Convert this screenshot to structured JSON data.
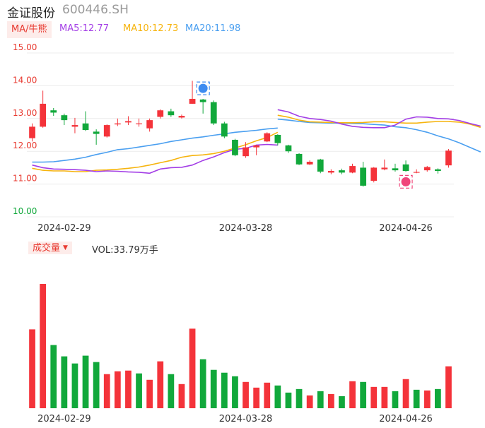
{
  "header": {
    "name": "金证股份",
    "code": "600446.SH"
  },
  "ma_legend": {
    "tag": "MA/牛熊",
    "ma5": "MA5:12.77",
    "ma10": "MA10:12.73",
    "ma20": "MA20:11.98"
  },
  "volume_legend": {
    "tag": "成交量",
    "value": "VOL:33.79万手"
  },
  "colors": {
    "up": "#f4333a",
    "down": "#11a83b",
    "ma5": "#a33ee6",
    "ma10": "#f6b40e",
    "ma20": "#4a9ff0",
    "price_axis": "#e8392f",
    "low_axis": "#11a83b",
    "grid": "#ececec",
    "signal_buy": "#3d8bf0",
    "signal_sell": "#f0457a"
  },
  "chart_data": [
    {
      "type": "candlestick",
      "ylim": [
        10.0,
        15.0
      ],
      "y_ticks": [
        "15.00",
        "14.00",
        "13.00",
        "12.00",
        "11.00",
        "10.00"
      ],
      "x_tick_labels": [
        "2024-02-29",
        "2024-03-28",
        "2024-04-26"
      ],
      "x_tick_indices": [
        3,
        20,
        35
      ],
      "candles": [
        {
          "o": 12.4,
          "c": 12.75,
          "h": 12.85,
          "l": 12.3
        },
        {
          "o": 12.75,
          "c": 13.45,
          "h": 13.85,
          "l": 12.72
        },
        {
          "o": 13.25,
          "c": 13.18,
          "h": 13.32,
          "l": 13.08
        },
        {
          "o": 13.1,
          "c": 12.95,
          "h": 13.15,
          "l": 12.8
        },
        {
          "o": 12.75,
          "c": 12.8,
          "h": 13.02,
          "l": 12.55
        },
        {
          "o": 12.85,
          "c": 12.65,
          "h": 13.22,
          "l": 12.62
        },
        {
          "o": 12.6,
          "c": 12.53,
          "h": 12.67,
          "l": 12.2
        },
        {
          "o": 12.45,
          "c": 12.8,
          "h": 12.82,
          "l": 12.42
        },
        {
          "o": 12.82,
          "c": 12.85,
          "h": 13.0,
          "l": 12.77
        },
        {
          "o": 12.88,
          "c": 12.92,
          "h": 13.07,
          "l": 12.8
        },
        {
          "o": 12.85,
          "c": 12.85,
          "h": 13.0,
          "l": 12.75
        },
        {
          "o": 12.7,
          "c": 12.95,
          "h": 13.0,
          "l": 12.6
        },
        {
          "o": 13.05,
          "c": 13.25,
          "h": 13.28,
          "l": 13.0
        },
        {
          "o": 13.22,
          "c": 13.1,
          "h": 13.3,
          "l": 13.05
        },
        {
          "o": 13.03,
          "c": 13.08,
          "h": 13.12,
          "l": 13.0
        },
        {
          "o": 13.45,
          "c": 13.6,
          "h": 14.15,
          "l": 13.45
        },
        {
          "o": 13.58,
          "c": 13.5,
          "h": 13.6,
          "l": 13.15
        },
        {
          "o": 13.5,
          "c": 12.85,
          "h": 13.55,
          "l": 12.8
        },
        {
          "o": 12.85,
          "c": 12.45,
          "h": 12.9,
          "l": 12.4
        },
        {
          "o": 12.35,
          "c": 11.88,
          "h": 12.38,
          "l": 11.85
        },
        {
          "o": 11.85,
          "c": 12.12,
          "h": 12.28,
          "l": 11.8
        },
        {
          "o": 12.12,
          "c": 12.18,
          "h": 12.2,
          "l": 11.88
        },
        {
          "o": 12.3,
          "c": 12.55,
          "h": 12.58,
          "l": 12.28
        },
        {
          "o": 12.5,
          "c": 12.25,
          "h": 12.52,
          "l": 12.18
        },
        {
          "o": 12.18,
          "c": 12.0,
          "h": 12.2,
          "l": 11.95
        },
        {
          "o": 11.92,
          "c": 11.6,
          "h": 11.94,
          "l": 11.58
        },
        {
          "o": 11.6,
          "c": 11.68,
          "h": 11.72,
          "l": 11.58
        },
        {
          "o": 11.75,
          "c": 11.38,
          "h": 11.77,
          "l": 11.33
        },
        {
          "o": 11.35,
          "c": 11.4,
          "h": 11.45,
          "l": 11.3
        },
        {
          "o": 11.42,
          "c": 11.35,
          "h": 11.47,
          "l": 11.3
        },
        {
          "o": 11.35,
          "c": 11.55,
          "h": 11.62,
          "l": 11.33
        },
        {
          "o": 11.5,
          "c": 10.95,
          "h": 11.68,
          "l": 10.92
        },
        {
          "o": 11.1,
          "c": 11.5,
          "h": 11.52,
          "l": 11.05
        },
        {
          "o": 11.45,
          "c": 11.5,
          "h": 11.75,
          "l": 11.42
        },
        {
          "o": 11.48,
          "c": 11.42,
          "h": 11.62,
          "l": 11.38
        },
        {
          "o": 11.6,
          "c": 11.4,
          "h": 11.72,
          "l": 11.38
        },
        {
          "o": 11.36,
          "c": 11.37,
          "h": 11.45,
          "l": 11.33
        },
        {
          "o": 11.42,
          "c": 11.52,
          "h": 11.55,
          "l": 11.38
        },
        {
          "o": 11.45,
          "c": 11.4,
          "h": 11.48,
          "l": 11.32
        },
        {
          "o": 11.57,
          "c": 12.02,
          "h": 12.07,
          "l": 11.5
        }
      ],
      "ma5": [
        11.58,
        11.5,
        11.46,
        11.45,
        11.44,
        11.42,
        11.38,
        11.4,
        11.39,
        11.37,
        11.36,
        11.33,
        11.46,
        11.5,
        11.51,
        11.58,
        11.72,
        11.83,
        11.96,
        12.06,
        12.09,
        12.19,
        12.21,
        12.19,
        12.21,
        12.23,
        12.24,
        12.35,
        12.58,
        12.85,
        13.05,
        13.15,
        13.25,
        13.3,
        13.27,
        13.18,
        13.08,
        13.02,
        13.0,
        12.98
      ],
      "ma10": [
        11.48,
        11.42,
        11.4,
        11.4,
        11.38,
        11.38,
        11.42,
        11.43,
        11.45,
        11.48,
        11.52,
        11.58,
        11.65,
        11.72,
        11.82,
        11.87,
        11.89,
        11.93,
        12.0,
        12.1,
        12.2,
        12.32,
        12.42,
        12.58,
        12.66,
        12.72,
        12.78,
        12.82,
        12.85,
        12.88,
        12.95,
        13.03,
        13.07,
        13.1,
        13.1,
        13.06,
        12.99,
        12.93,
        12.9,
        12.9
      ],
      "ma20": [
        11.67,
        11.67,
        11.68,
        11.72,
        11.76,
        11.82,
        11.9,
        11.97,
        12.05,
        12.08,
        12.13,
        12.18,
        12.23,
        12.3,
        12.35,
        12.4,
        12.44,
        12.49,
        12.53,
        12.58,
        12.61,
        12.64,
        12.68,
        12.71,
        12.74,
        12.76,
        12.78,
        12.81,
        12.84,
        12.88,
        12.91,
        12.94,
        12.96,
        12.98,
        12.98,
        12.98,
        12.96,
        12.93,
        12.9,
        12.88
      ],
      "ma_segment_2": {
        "start_index": 23,
        "ma5": [
          13.27,
          13.2,
          13.07,
          13.0,
          12.97,
          12.92,
          12.83,
          12.76,
          12.73,
          12.72,
          12.72,
          12.8,
          12.98,
          13.05,
          13.04,
          13.0,
          12.99,
          12.94,
          12.85,
          12.77
        ],
        "ma10": [
          13.1,
          13.04,
          12.95,
          12.9,
          12.89,
          12.88,
          12.87,
          12.87,
          12.88,
          12.9,
          12.9,
          12.88,
          12.86,
          12.86,
          12.89,
          12.91,
          12.91,
          12.89,
          12.83,
          12.73
        ],
        "ma20": [
          12.98,
          12.95,
          12.91,
          12.88,
          12.87,
          12.86,
          12.86,
          12.85,
          12.84,
          12.82,
          12.8,
          12.75,
          12.72,
          12.66,
          12.58,
          12.47,
          12.38,
          12.26,
          12.12,
          11.98
        ]
      },
      "signals": [
        {
          "index": 16,
          "price": 13.92,
          "kind": "buy"
        },
        {
          "index": 35,
          "price": 11.07,
          "kind": "sell"
        }
      ]
    },
    {
      "type": "bar",
      "title": "成交量",
      "x_tick_labels": [
        "2024-02-29",
        "2024-03-28",
        "2024-04-26"
      ],
      "x_tick_indices": [
        3,
        20,
        35
      ],
      "values": [
        111,
        175,
        89,
        73,
        63,
        74,
        65,
        48,
        52,
        53,
        49,
        40,
        66,
        48,
        34,
        112,
        69,
        54,
        50,
        45,
        37,
        29,
        36,
        32,
        22,
        27,
        18,
        24,
        20,
        17,
        38,
        37,
        30,
        30,
        24,
        41,
        26,
        25,
        27,
        59
      ],
      "up": [
        true,
        true,
        false,
        false,
        false,
        false,
        false,
        true,
        true,
        true,
        false,
        true,
        true,
        false,
        true,
        true,
        false,
        false,
        false,
        false,
        true,
        true,
        true,
        false,
        false,
        false,
        true,
        false,
        true,
        false,
        true,
        false,
        true,
        true,
        false,
        true,
        false,
        true,
        false,
        true
      ]
    }
  ]
}
